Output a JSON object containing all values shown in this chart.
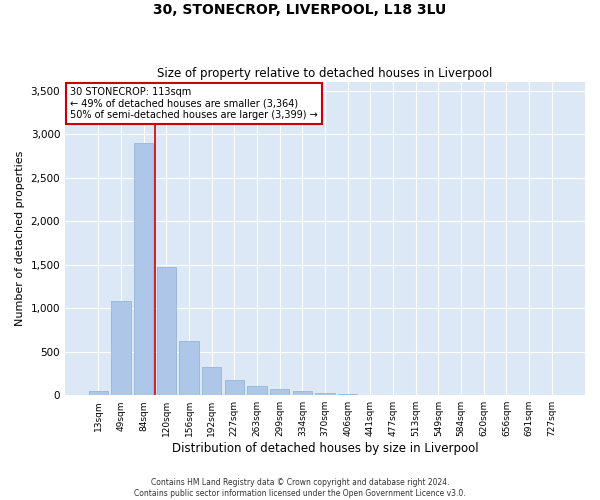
{
  "title": "30, STONECROP, LIVERPOOL, L18 3LU",
  "subtitle": "Size of property relative to detached houses in Liverpool",
  "xlabel": "Distribution of detached houses by size in Liverpool",
  "ylabel": "Number of detached properties",
  "categories": [
    "13sqm",
    "49sqm",
    "84sqm",
    "120sqm",
    "156sqm",
    "192sqm",
    "227sqm",
    "263sqm",
    "299sqm",
    "334sqm",
    "370sqm",
    "406sqm",
    "441sqm",
    "477sqm",
    "513sqm",
    "549sqm",
    "584sqm",
    "620sqm",
    "656sqm",
    "691sqm",
    "727sqm"
  ],
  "values": [
    50,
    1080,
    2900,
    1470,
    620,
    330,
    175,
    110,
    70,
    50,
    30,
    15,
    8,
    5,
    3,
    2,
    1,
    1,
    0,
    0,
    0
  ],
  "bar_color": "#aec6e8",
  "bar_edge_color": "#8ab0d0",
  "background_color": "#dce8f5",
  "grid_color": "#ffffff",
  "vline_x": 2.5,
  "vline_color": "#cc0000",
  "annotation_text": "30 STONECROP: 113sqm\n← 49% of detached houses are smaller (3,364)\n50% of semi-detached houses are larger (3,399) →",
  "annotation_box_color": "#ffffff",
  "annotation_box_edge": "#cc0000",
  "ylim": [
    0,
    3600
  ],
  "yticks": [
    0,
    500,
    1000,
    1500,
    2000,
    2500,
    3000,
    3500
  ],
  "footer_line1": "Contains HM Land Registry data © Crown copyright and database right 2024.",
  "footer_line2": "Contains public sector information licensed under the Open Government Licence v3.0."
}
